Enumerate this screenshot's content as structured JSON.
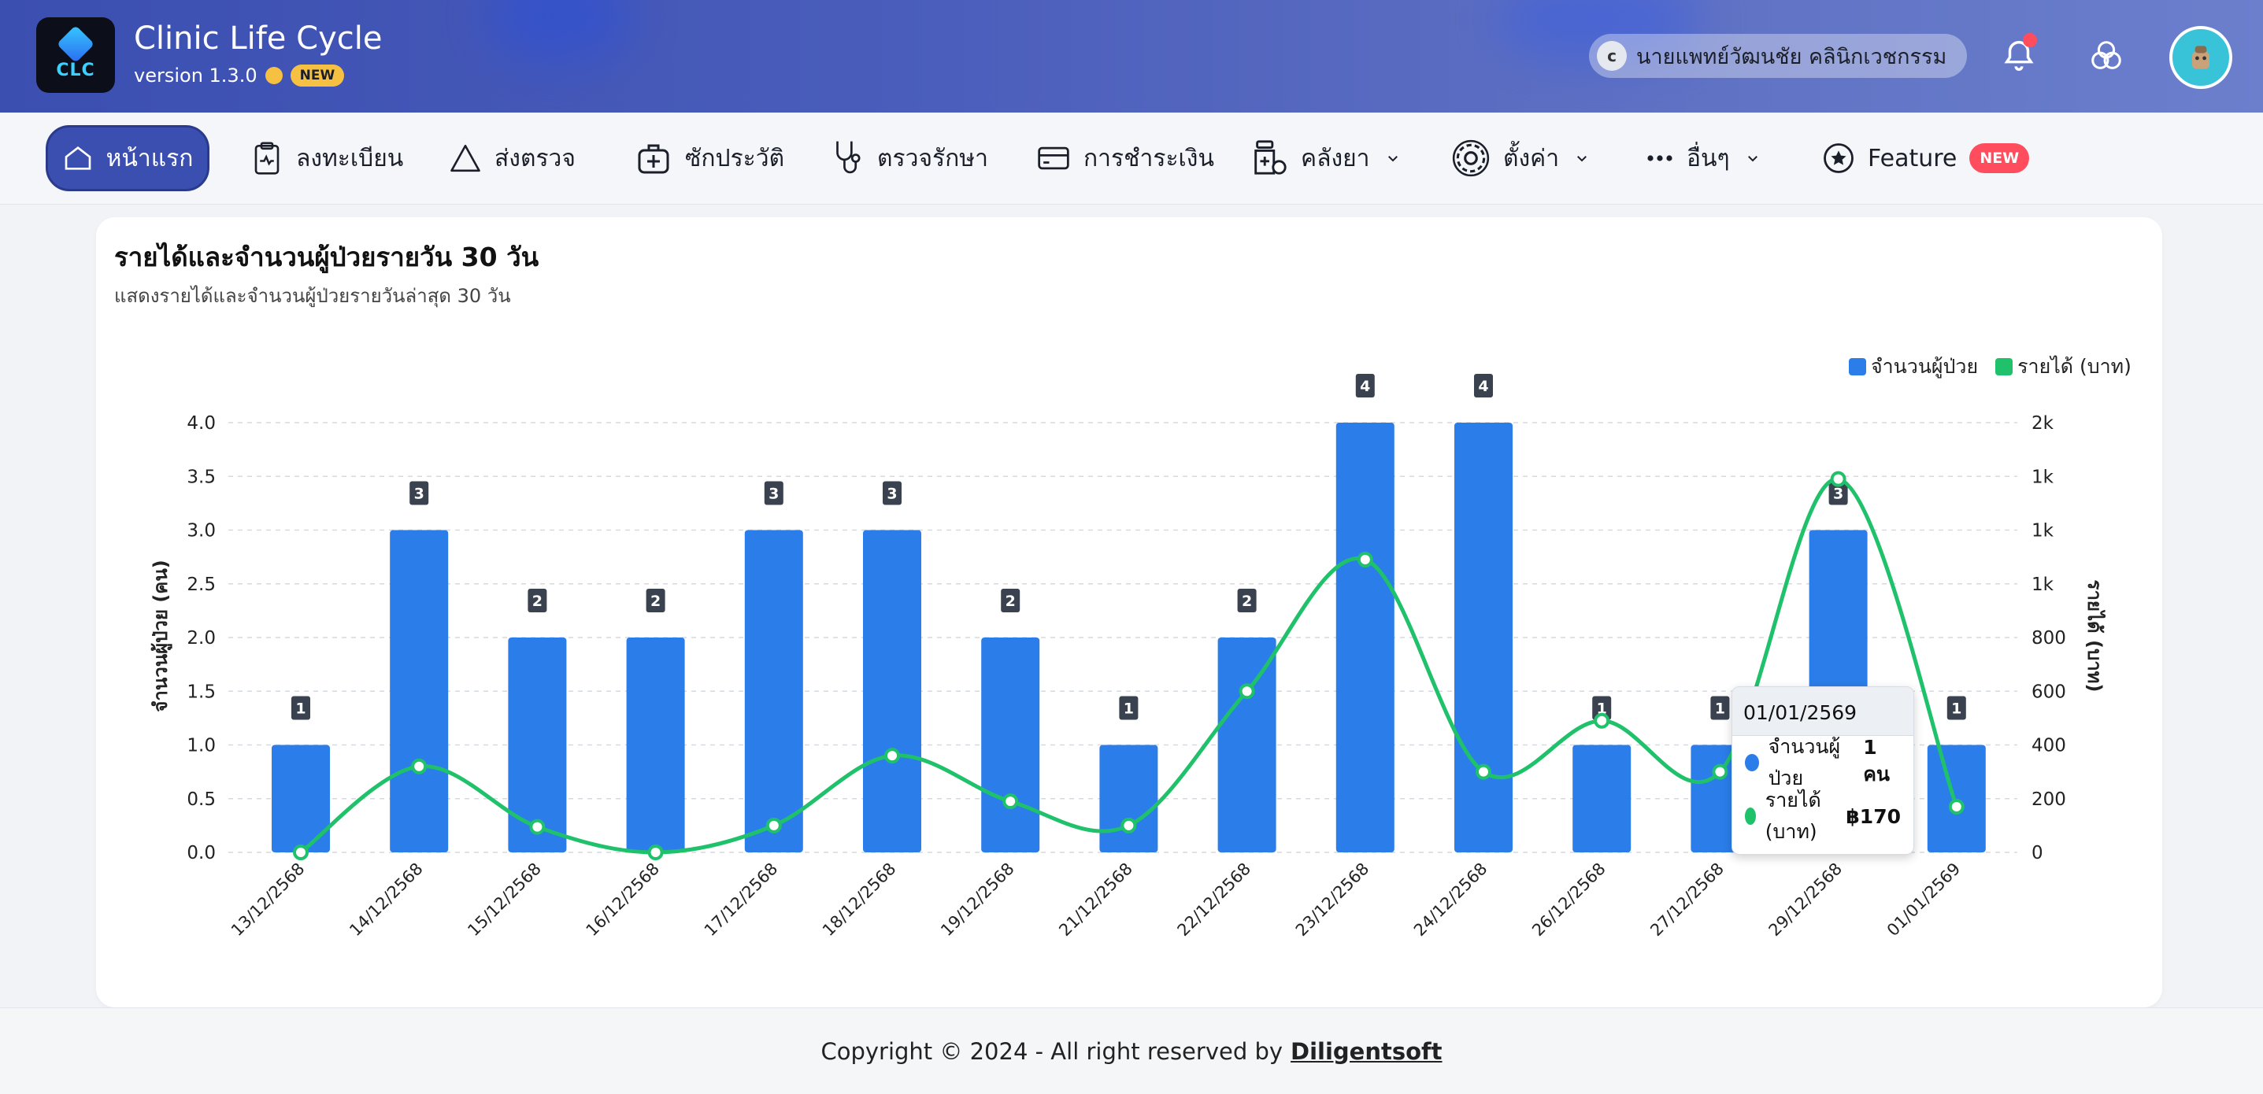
{
  "header": {
    "app_title": "Clinic Life Cycle",
    "version": "version 1.3.0",
    "new_badge": "NEW",
    "logo_text": "CLC",
    "user_initial": "c",
    "user_name": "นายแพทย์วัฒนชัย คลินิกเวชกรรม"
  },
  "nav": {
    "home": "หน้าแรก",
    "register": "ลงทะเบียน",
    "send_exam": "ส่งตรวจ",
    "history": "ซักประวัติ",
    "treatment": "ตรวจรักษา",
    "payment": "การชำระเงิน",
    "pharmacy": "คลังยา",
    "settings": "ตั้งค่า",
    "more": "อื่นๆ",
    "feature": "Feature",
    "feature_badge": "NEW"
  },
  "card": {
    "title": "รายได้และจำนวนผู้ป่วยรายวัน 30 วัน",
    "subtitle": "แสดงรายได้และจำนวนผู้ป่วยรายวันล่าสุด 30 วัน"
  },
  "colors": {
    "bar": "#2b7de9",
    "line": "#1fc16b"
  },
  "chart_data": {
    "type": "bar",
    "categories": [
      "13/12/2568",
      "14/12/2568",
      "15/12/2568",
      "16/12/2568",
      "17/12/2568",
      "18/12/2568",
      "19/12/2568",
      "21/12/2568",
      "22/12/2568",
      "23/12/2568",
      "24/12/2568",
      "26/12/2568",
      "27/12/2568",
      "29/12/2568",
      "01/01/2569"
    ],
    "series": [
      {
        "name": "จำนวนผู้ป่วย",
        "type": "bar",
        "axis": "left",
        "values": [
          1,
          3,
          2,
          2,
          3,
          3,
          2,
          1,
          2,
          4,
          4,
          1,
          1,
          3,
          1
        ]
      },
      {
        "name": "รายได้ (บาท)",
        "type": "line",
        "axis": "right",
        "values": [
          0,
          320,
          95,
          0,
          100,
          360,
          190,
          100,
          600,
          1090,
          300,
          490,
          300,
          1390,
          170
        ]
      }
    ],
    "bar_labels": [
      "1",
      "3",
      "2",
      "2",
      "3",
      "3",
      "2",
      "1",
      "2",
      "4",
      "4",
      "1",
      "1",
      "3",
      "1"
    ],
    "ylabel": "จำนวนผู้ป่วย (คน)",
    "y2label": "รายได้ (บาท)",
    "ylim": [
      0,
      4
    ],
    "y2lim": [
      0,
      1600
    ],
    "y_ticks": [
      "0.0",
      "0.5",
      "1.0",
      "1.5",
      "2.0",
      "2.5",
      "3.0",
      "3.5",
      "4.0"
    ],
    "y2_ticks": [
      "0",
      "200",
      "400",
      "600",
      "800",
      "1k",
      "1k",
      "1k",
      "2k"
    ],
    "legend_position": "top-right",
    "grid": true
  },
  "tooltip": {
    "date": "01/01/2569",
    "patients_label": "จำนวนผู้ป่วย",
    "patients_value": "1 คน",
    "income_label": "รายได้ (บาท)",
    "income_value": "฿170"
  },
  "footer": {
    "text": "Copyright © 2024 - All right reserved by",
    "brand": "Diligentsoft"
  }
}
